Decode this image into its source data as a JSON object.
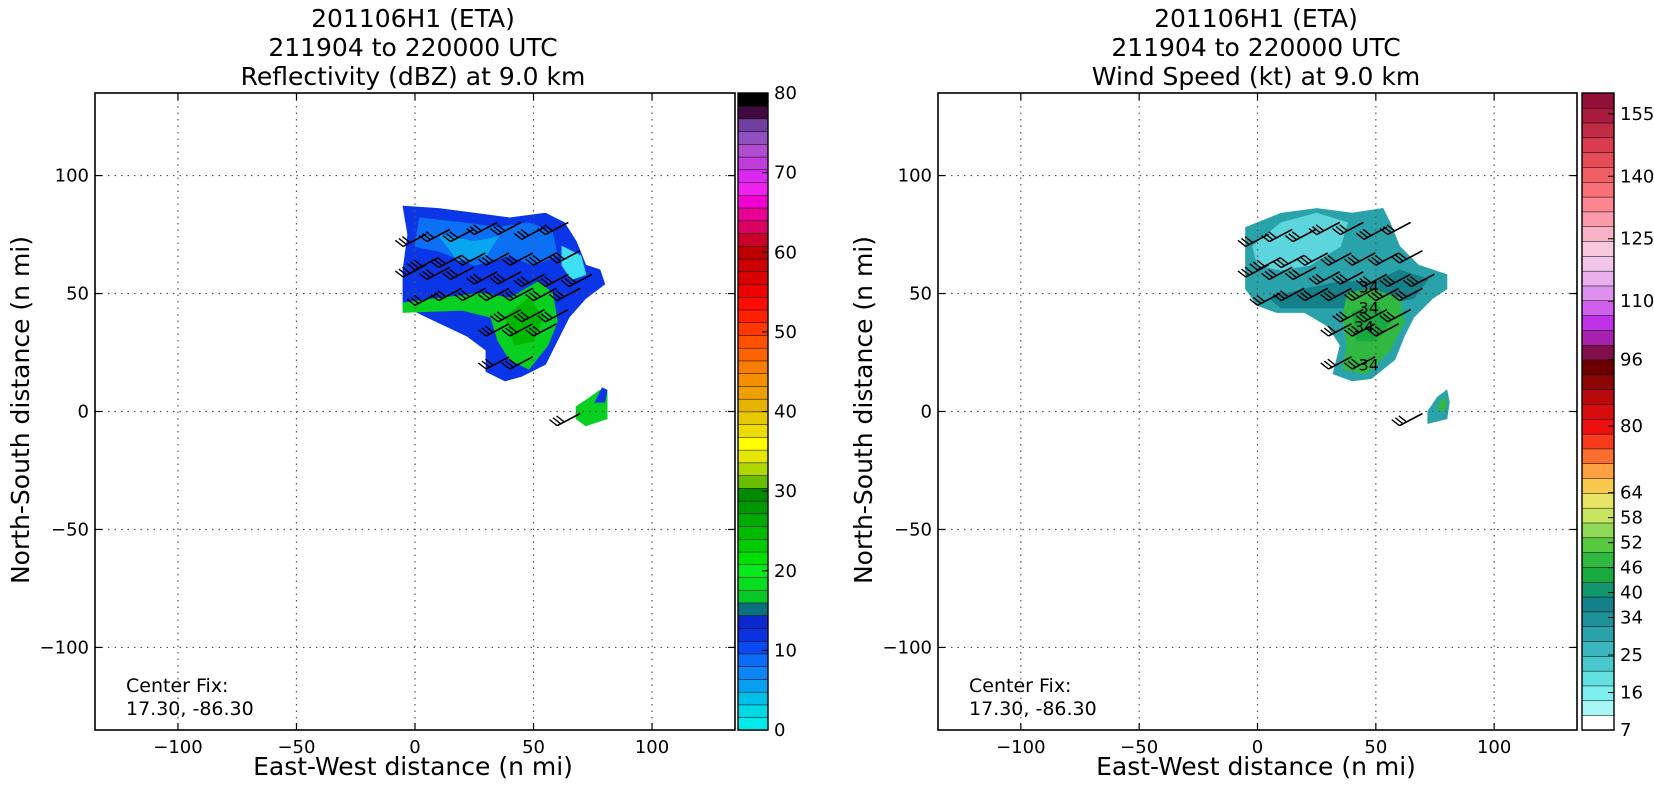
{
  "chart_data": [
    {
      "type": "heatmap",
      "title": [
        "201106H1 (ETA)",
        "211904 to 220000 UTC",
        "Reflectivity (dBZ) at 9.0 km"
      ],
      "xlabel": "East-West distance (n mi)",
      "ylabel": "North-South distance (n mi)",
      "xlim": [
        -135,
        135
      ],
      "ylim": [
        -135,
        135
      ],
      "xticks": [
        -100,
        -50,
        0,
        50,
        100
      ],
      "yticks": [
        -100,
        -50,
        0,
        50,
        100
      ],
      "grid": true,
      "annotation": [
        "Center Fix:",
        "17.30, -86.30"
      ],
      "colorbar": {
        "min": 0,
        "max": 80,
        "tick_values": [
          0,
          10,
          20,
          30,
          40,
          50,
          60,
          70,
          80
        ],
        "tick_labels": [
          "0",
          "10",
          "20",
          "30",
          "40",
          "50",
          "60",
          "70",
          "80"
        ],
        "colors": [
          "#00ebeb",
          "#00d8e6",
          "#00c0ea",
          "#0aa0f2",
          "#0c86f5",
          "#0a6cf7",
          "#0a48f2",
          "#0a32e0",
          "#0a28cc",
          "#0a7080",
          "#08c828",
          "#06dc20",
          "#04ea1a",
          "#00e000",
          "#00cc00",
          "#00bb00",
          "#00aa00",
          "#009600",
          "#008a00",
          "#6abe00",
          "#b0d800",
          "#e6e600",
          "#ffff00",
          "#eedc00",
          "#e8c800",
          "#e6b400",
          "#eea000",
          "#f49000",
          "#f87c00",
          "#fc6400",
          "#ff5000",
          "#ff3800",
          "#ff2000",
          "#ff0c00",
          "#ee0000",
          "#d80000",
          "#cc0000",
          "#be0000",
          "#c8002a",
          "#dc0064",
          "#e80096",
          "#f000d2",
          "#f020f0",
          "#da28ee",
          "#c03cdc",
          "#b04cd0",
          "#9050c0",
          "#7040a0",
          "#400a40",
          "#000000"
        ]
      },
      "regions": [
        {
          "color": "#0a36e8",
          "points": [
            [
              -5,
              87
            ],
            [
              10,
              86
            ],
            [
              25,
              84
            ],
            [
              40,
              82
            ],
            [
              55,
              84
            ],
            [
              63,
              80
            ],
            [
              68,
              72
            ],
            [
              72,
              62
            ],
            [
              78,
              60
            ],
            [
              80,
              54
            ],
            [
              72,
              48
            ],
            [
              65,
              40
            ],
            [
              60,
              30
            ],
            [
              55,
              20
            ],
            [
              45,
              15
            ],
            [
              38,
              13
            ],
            [
              30,
              17
            ],
            [
              30,
              26
            ],
            [
              22,
              32
            ],
            [
              5,
              40
            ],
            [
              -5,
              45
            ],
            [
              -5,
              60
            ],
            [
              -3,
              75
            ]
          ]
        },
        {
          "color": "#0c70f4",
          "points": [
            [
              2,
              82
            ],
            [
              20,
              80
            ],
            [
              35,
              78
            ],
            [
              48,
              80
            ],
            [
              58,
              76
            ],
            [
              60,
              66
            ],
            [
              50,
              62
            ],
            [
              40,
              66
            ],
            [
              25,
              62
            ],
            [
              10,
              68
            ],
            [
              0,
              70
            ]
          ]
        },
        {
          "color": "#08a6ee",
          "points": [
            [
              10,
              75
            ],
            [
              25,
              72
            ],
            [
              35,
              74
            ],
            [
              30,
              66
            ],
            [
              18,
              64
            ]
          ]
        },
        {
          "color": "#3ce0f4",
          "points": [
            [
              62,
              70
            ],
            [
              70,
              66
            ],
            [
              72,
              58
            ],
            [
              66,
              56
            ],
            [
              62,
              62
            ]
          ]
        },
        {
          "color": "#08d020",
          "points": [
            [
              -5,
              46
            ],
            [
              10,
              48
            ],
            [
              28,
              50
            ],
            [
              40,
              48
            ],
            [
              52,
              55
            ],
            [
              58,
              50
            ],
            [
              60,
              38
            ],
            [
              56,
              28
            ],
            [
              48,
              18
            ],
            [
              40,
              22
            ],
            [
              35,
              30
            ],
            [
              32,
              40
            ],
            [
              20,
              43
            ],
            [
              -5,
              42
            ]
          ]
        },
        {
          "color": "#00b800",
          "points": [
            [
              38,
              40
            ],
            [
              48,
              48
            ],
            [
              54,
              40
            ],
            [
              50,
              30
            ],
            [
              42,
              28
            ]
          ]
        },
        {
          "color": "#08d020",
          "points": [
            [
              68,
              2
            ],
            [
              74,
              6
            ],
            [
              78,
              9
            ],
            [
              81,
              8
            ],
            [
              81,
              -3
            ],
            [
              72,
              -6
            ],
            [
              68,
              -3
            ]
          ]
        },
        {
          "color": "#0a36e8",
          "points": [
            [
              76,
              4
            ],
            [
              79,
              10
            ],
            [
              81,
              9
            ],
            [
              80,
              4
            ]
          ]
        }
      ],
      "barbs": [
        [
          -5,
          70
        ],
        [
          5,
          72
        ],
        [
          15,
          72
        ],
        [
          25,
          75
        ],
        [
          35,
          75
        ],
        [
          45,
          73
        ],
        [
          55,
          75
        ],
        [
          0,
          60
        ],
        [
          10,
          61
        ],
        [
          20,
          62
        ],
        [
          30,
          62
        ],
        [
          40,
          62
        ],
        [
          50,
          62
        ],
        [
          60,
          63
        ],
        [
          -5,
          57
        ],
        [
          5,
          56
        ],
        [
          15,
          56
        ],
        [
          25,
          54
        ],
        [
          35,
          54
        ],
        [
          45,
          53
        ],
        [
          55,
          53
        ],
        [
          65,
          53
        ],
        [
          0,
          45
        ],
        [
          10,
          47
        ],
        [
          20,
          47
        ],
        [
          30,
          47
        ],
        [
          40,
          47
        ],
        [
          50,
          47
        ],
        [
          60,
          47
        ],
        [
          35,
          38
        ],
        [
          45,
          38
        ],
        [
          55,
          38
        ],
        [
          30,
          32
        ],
        [
          40,
          32
        ],
        [
          50,
          32
        ],
        [
          30,
          18
        ],
        [
          40,
          18
        ],
        [
          60,
          -6
        ]
      ],
      "contours": []
    },
    {
      "type": "heatmap",
      "title": [
        "201106H1 (ETA)",
        "211904 to 220000 UTC",
        "Wind Speed (kt) at 9.0 km"
      ],
      "xlabel": "East-West distance (n mi)",
      "ylabel": "North-South distance (n mi)",
      "xlim": [
        -135,
        135
      ],
      "ylim": [
        -135,
        135
      ],
      "xticks": [
        -100,
        -50,
        0,
        50,
        100
      ],
      "yticks": [
        -100,
        -50,
        0,
        50,
        100
      ],
      "grid": true,
      "annotation": [
        "Center Fix:",
        "17.30, -86.30"
      ],
      "colorbar": {
        "min": 7,
        "max": 160,
        "tick_values": [
          7,
          16,
          25,
          34,
          40,
          46,
          52,
          58,
          64,
          80,
          96,
          110,
          125,
          140,
          155
        ],
        "tick_labels": [
          "7",
          "16",
          "25",
          "34",
          "40",
          "46",
          "52",
          "58",
          "64",
          "80",
          "96",
          "110",
          "125",
          "140",
          "155"
        ],
        "colors": [
          "#ffffff",
          "#a8f6f6",
          "#7eeeee",
          "#62e0e0",
          "#4ac8cc",
          "#3cb6bc",
          "#2aa2aa",
          "#1e9098",
          "#14808a",
          "#12966e",
          "#18aa3e",
          "#30b840",
          "#58c840",
          "#90d858",
          "#c8e460",
          "#e8e466",
          "#f8c84e",
          "#fca040",
          "#fc6e30",
          "#f83a1c",
          "#ee1010",
          "#d80c0c",
          "#b80a0a",
          "#8c0606",
          "#6c0000",
          "#800e4a",
          "#a820b0",
          "#c032e8",
          "#d060ec",
          "#de90ee",
          "#e8b0ec",
          "#f2c6ea",
          "#f8c8dc",
          "#f8b2c8",
          "#fa9aaa",
          "#fc8690",
          "#fa7078",
          "#f05e66",
          "#e64c58",
          "#d83c4e",
          "#c02c46",
          "#a81a3e",
          "#921038"
        ]
      },
      "regions": [
        {
          "color": "#2aa2aa",
          "points": [
            [
              -5,
              78
            ],
            [
              10,
              84
            ],
            [
              25,
              86
            ],
            [
              40,
              84
            ],
            [
              53,
              86
            ],
            [
              56,
              80
            ],
            [
              60,
              70
            ],
            [
              68,
              62
            ],
            [
              80,
              58
            ],
            [
              80,
              52
            ],
            [
              74,
              48
            ],
            [
              66,
              40
            ],
            [
              62,
              32
            ],
            [
              58,
              22
            ],
            [
              48,
              14
            ],
            [
              40,
              13
            ],
            [
              32,
              16
            ],
            [
              35,
              28
            ],
            [
              30,
              36
            ],
            [
              20,
              42
            ],
            [
              8,
              42
            ],
            [
              0,
              45
            ],
            [
              -5,
              52
            ],
            [
              -5,
              66
            ]
          ]
        },
        {
          "color": "#5cd6dc",
          "points": [
            [
              -2,
              70
            ],
            [
              10,
              80
            ],
            [
              25,
              84
            ],
            [
              38,
              80
            ],
            [
              35,
              70
            ],
            [
              22,
              62
            ],
            [
              10,
              60
            ],
            [
              0,
              62
            ]
          ]
        },
        {
          "color": "#14808a",
          "points": [
            [
              5,
              48
            ],
            [
              20,
              52
            ],
            [
              35,
              55
            ],
            [
              50,
              55
            ],
            [
              60,
              60
            ],
            [
              72,
              56
            ],
            [
              66,
              48
            ],
            [
              55,
              46
            ],
            [
              40,
              44
            ],
            [
              25,
              44
            ],
            [
              10,
              44
            ]
          ]
        },
        {
          "color": "#30b840",
          "points": [
            [
              38,
              50
            ],
            [
              48,
              52
            ],
            [
              60,
              48
            ],
            [
              62,
              38
            ],
            [
              56,
              26
            ],
            [
              46,
              16
            ],
            [
              36,
              18
            ],
            [
              38,
              28
            ],
            [
              36,
              40
            ]
          ]
        },
        {
          "color": "#18aa3e",
          "points": [
            [
              40,
              42
            ],
            [
              50,
              46
            ],
            [
              56,
              38
            ],
            [
              50,
              30
            ],
            [
              42,
              30
            ]
          ]
        },
        {
          "color": "#2aa2aa",
          "points": [
            [
              72,
              0
            ],
            [
              76,
              6
            ],
            [
              80,
              9
            ],
            [
              81,
              4
            ],
            [
              80,
              -3
            ],
            [
              72,
              -5
            ]
          ]
        },
        {
          "color": "#30b840",
          "points": [
            [
              76,
              2
            ],
            [
              79,
              6
            ],
            [
              80,
              2
            ],
            [
              78,
              0
            ]
          ]
        }
      ],
      "barbs": [
        [
          -5,
          70
        ],
        [
          5,
          72
        ],
        [
          15,
          72
        ],
        [
          25,
          75
        ],
        [
          35,
          75
        ],
        [
          45,
          73
        ],
        [
          55,
          75
        ],
        [
          0,
          60
        ],
        [
          10,
          61
        ],
        [
          20,
          62
        ],
        [
          30,
          62
        ],
        [
          40,
          62
        ],
        [
          50,
          62
        ],
        [
          60,
          63
        ],
        [
          -5,
          57
        ],
        [
          5,
          56
        ],
        [
          15,
          56
        ],
        [
          25,
          54
        ],
        [
          35,
          54
        ],
        [
          45,
          53
        ],
        [
          55,
          53
        ],
        [
          65,
          53
        ],
        [
          0,
          45
        ],
        [
          10,
          47
        ],
        [
          20,
          47
        ],
        [
          30,
          47
        ],
        [
          40,
          47
        ],
        [
          50,
          47
        ],
        [
          60,
          47
        ],
        [
          35,
          38
        ],
        [
          45,
          38
        ],
        [
          55,
          38
        ],
        [
          30,
          32
        ],
        [
          40,
          32
        ],
        [
          50,
          32
        ],
        [
          30,
          18
        ],
        [
          40,
          18
        ],
        [
          60,
          -6
        ]
      ],
      "contours": [
        {
          "label": "34",
          "x": 47,
          "y": 53
        },
        {
          "label": "34",
          "x": 47,
          "y": 44
        },
        {
          "label": "34",
          "x": 45,
          "y": 36
        },
        {
          "label": "34",
          "x": 47,
          "y": 20
        }
      ]
    }
  ]
}
